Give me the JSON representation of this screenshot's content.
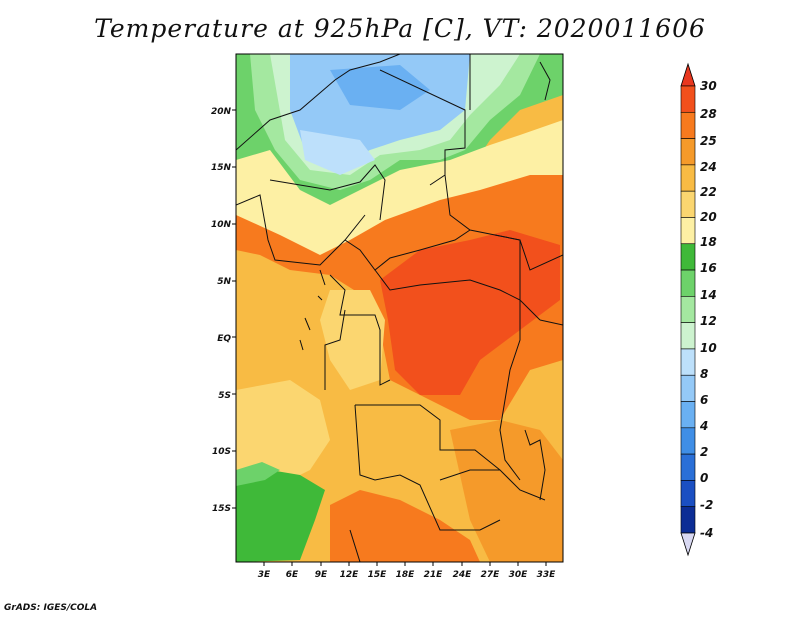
{
  "title": "Temperature at 925hPa [C], VT: 2020011606",
  "credit": "GrADS: IGES/COLA",
  "map": {
    "lat_labels": [
      "20N",
      "15N",
      "10N",
      "5N",
      "EQ",
      "5S",
      "10S",
      "15S"
    ],
    "lon_labels": [
      "3E",
      "6E",
      "9E",
      "12E",
      "15E",
      "18E",
      "21E",
      "24E",
      "27E",
      "30E",
      "33E"
    ],
    "lat_range": [
      -19,
      24
    ],
    "lon_range": [
      1.5,
      33.5
    ]
  },
  "colorbar": {
    "labels": [
      "30",
      "28",
      "25",
      "24",
      "22",
      "20",
      "18",
      "16",
      "14",
      "12",
      "10",
      "8",
      "6",
      "4",
      "2",
      "0",
      "-2",
      "-4"
    ],
    "colors": [
      "#e8371f",
      "#f2501c",
      "#f77a1e",
      "#f59a2a",
      "#f8bb44",
      "#fbd670",
      "#fdf0a4",
      "#3fb939",
      "#6dd26a",
      "#a4e8a0",
      "#cdf3cf",
      "#bde0fb",
      "#94c9f7",
      "#6ab0f2",
      "#3f8ee6",
      "#2a6fd7",
      "#1b4fc2",
      "#0c2d95",
      "#d8d8f2"
    ]
  }
}
